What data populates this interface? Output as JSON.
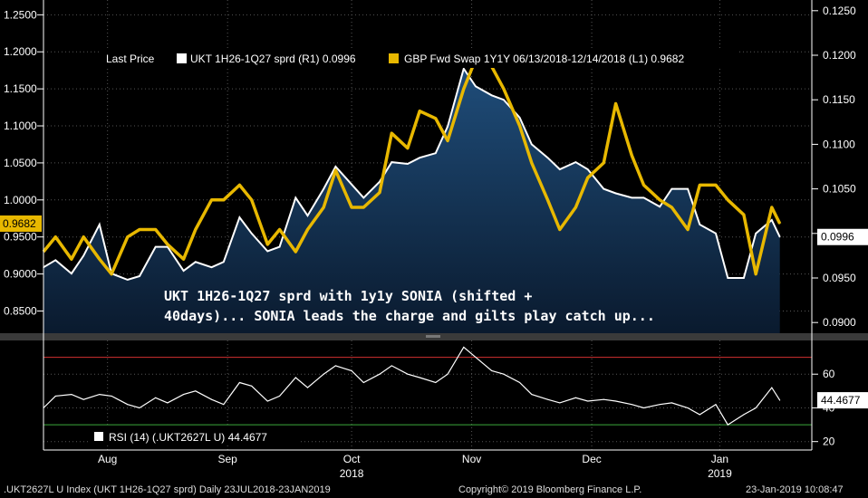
{
  "chart_data": [
    {
      "type": "line",
      "panel": "price",
      "legend": {
        "label": "Last Price",
        "series_labels": [
          "UKT 1H26-1Q27 sprd  (R1) 0.0996",
          "GBP Fwd Swap 1Y1Y 06/13/2018-12/14/2018   (L1) 0.9682"
        ]
      },
      "annotation": "UKT 1H26-1Q27 sprd with 1y1y SONIA (shifted + 40days)... SONIA leads the charge and gilts play catch up...",
      "left_axis": {
        "ticks": [
          "1.2500",
          "1.2000",
          "1.1500",
          "1.1000",
          "1.0500",
          "1.0000",
          "0.9500",
          "0.9000",
          "0.8500"
        ],
        "range": [
          0.82,
          1.27
        ],
        "last_value_label": "0.9682"
      },
      "right_axis": {
        "ticks": [
          "0.1250",
          "0.1200",
          "0.1150",
          "0.1100",
          "0.1050",
          "0.1000",
          "0.0950",
          "0.0900"
        ],
        "range": [
          0.0888,
          0.1262
        ],
        "last_value_label": "0.0996"
      },
      "x": [
        "2018-07-23",
        "2018-07-26",
        "2018-07-30",
        "2018-08-02",
        "2018-08-06",
        "2018-08-09",
        "2018-08-13",
        "2018-08-16",
        "2018-08-20",
        "2018-08-23",
        "2018-08-27",
        "2018-08-30",
        "2018-09-03",
        "2018-09-06",
        "2018-09-10",
        "2018-09-13",
        "2018-09-17",
        "2018-09-20",
        "2018-09-24",
        "2018-09-27",
        "2018-10-01",
        "2018-10-04",
        "2018-10-08",
        "2018-10-11",
        "2018-10-15",
        "2018-10-18",
        "2018-10-22",
        "2018-10-25",
        "2018-10-29",
        "2018-11-01",
        "2018-11-05",
        "2018-11-08",
        "2018-11-12",
        "2018-11-15",
        "2018-11-19",
        "2018-11-22",
        "2018-11-26",
        "2018-11-29",
        "2018-12-03",
        "2018-12-06",
        "2018-12-10",
        "2018-12-13",
        "2018-12-17",
        "2018-12-20",
        "2018-12-24",
        "2018-12-27",
        "2018-12-31",
        "2019-01-03",
        "2019-01-07",
        "2019-01-10",
        "2019-01-14",
        "2019-01-17",
        "2019-01-21",
        "2019-01-23"
      ],
      "series": [
        {
          "name": "UKT 1H26-1Q27 sprd",
          "axis": "right",
          "color": "#ffffff",
          "values": [
            0.0962,
            0.097,
            0.0955,
            0.0975,
            0.101,
            0.0955,
            0.0948,
            0.0952,
            0.0985,
            0.0985,
            0.0958,
            0.0968,
            0.0962,
            0.0968,
            0.1018,
            0.1,
            0.098,
            0.0985,
            0.104,
            0.102,
            0.105,
            0.1075,
            0.1055,
            0.104,
            0.1058,
            0.108,
            0.1078,
            0.1085,
            0.109,
            0.112,
            0.1185,
            0.1165,
            0.1155,
            0.115,
            0.113,
            0.11,
            0.1085,
            0.1072,
            0.108,
            0.1072,
            0.105,
            0.1045,
            0.104,
            0.104,
            0.103,
            0.105,
            0.105,
            0.101,
            0.1,
            0.095,
            0.095,
            0.1,
            0.1015,
            0.0996
          ]
        },
        {
          "name": "GBP Fwd Swap 1Y1Y 06/13/2018-12/14/2018",
          "axis": "left",
          "color": "#e8b800",
          "values": [
            0.93,
            0.95,
            0.92,
            0.95,
            0.92,
            0.9,
            0.95,
            0.96,
            0.96,
            0.94,
            0.92,
            0.96,
            1.0,
            1.0,
            1.02,
            1.0,
            0.94,
            0.96,
            0.93,
            0.96,
            0.99,
            1.04,
            0.99,
            0.99,
            1.01,
            1.09,
            1.07,
            1.12,
            1.11,
            1.08,
            1.15,
            1.19,
            1.18,
            1.15,
            1.1,
            1.05,
            1.0,
            0.96,
            0.99,
            1.03,
            1.05,
            1.13,
            1.06,
            1.02,
            1.0,
            0.99,
            0.96,
            1.02,
            1.02,
            1.0,
            0.98,
            0.9,
            0.99,
            0.968
          ]
        }
      ]
    },
    {
      "type": "line",
      "panel": "rsi",
      "legend_label": "RSI (14) (.UKT2627L U) 44.4677",
      "last_value_label": "44.4677",
      "y_ticks": [
        "60",
        "40",
        "20"
      ],
      "ylim": [
        15,
        80
      ],
      "upper_line": 70,
      "lower_line": 30,
      "series": [
        {
          "name": "RSI (14)",
          "color": "#ffffff",
          "values": [
            40,
            47,
            48,
            45,
            48,
            47,
            42,
            40,
            46,
            43,
            48,
            50,
            45,
            42,
            55,
            53,
            44,
            47,
            58,
            52,
            60,
            65,
            62,
            55,
            60,
            65,
            60,
            58,
            55,
            60,
            76,
            70,
            62,
            60,
            55,
            48,
            45,
            43,
            46,
            44,
            45,
            44,
            42,
            40,
            42,
            43,
            40,
            36,
            42,
            30,
            36,
            40,
            52,
            44.5
          ]
        }
      ]
    }
  ],
  "x_axis": {
    "months": [
      {
        "label": "Aug",
        "date": "2018-08-08"
      },
      {
        "label": "Sep",
        "date": "2018-09-07"
      },
      {
        "label": "Oct",
        "date": "2018-10-08"
      },
      {
        "label": "Nov",
        "date": "2018-11-07"
      },
      {
        "label": "Dec",
        "date": "2018-12-07"
      },
      {
        "label": "Jan",
        "date": "2019-01-08"
      }
    ],
    "years": [
      {
        "label": "2018",
        "date": "2018-10-08"
      },
      {
        "label": "2019",
        "date": "2019-01-08"
      }
    ],
    "range": [
      "2018-07-23",
      "2019-01-31"
    ]
  },
  "footer": {
    "left": ".UKT2627L U Index (UKT 1H26-1Q27 sprd)  Daily 23JUL2018-23JAN2019",
    "center": "Copyright© 2019 Bloomberg Finance L.P.",
    "right": "23-Jan-2019 10:08:47"
  }
}
